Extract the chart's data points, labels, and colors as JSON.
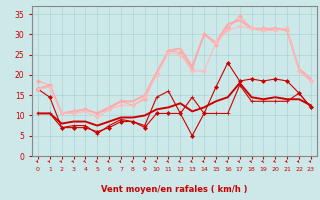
{
  "x": [
    0,
    1,
    2,
    3,
    4,
    5,
    6,
    7,
    8,
    9,
    10,
    11,
    12,
    13,
    14,
    15,
    16,
    17,
    18,
    19,
    20,
    21,
    22,
    23
  ],
  "lines": [
    {
      "y": [
        10.5,
        10.5,
        7.0,
        7.5,
        7.5,
        5.5,
        7.5,
        9.0,
        8.5,
        7.5,
        14.5,
        16.0,
        10.5,
        14.5,
        10.5,
        10.5,
        10.5,
        17.5,
        13.5,
        13.5,
        13.5,
        13.5,
        15.5,
        12.0
      ],
      "color": "#cc0000",
      "lw": 0.8,
      "marker": "+",
      "ms": 3.0,
      "zorder": 4
    },
    {
      "y": [
        16.5,
        14.5,
        7.0,
        7.0,
        7.0,
        6.0,
        7.0,
        8.5,
        8.5,
        7.0,
        10.5,
        10.5,
        10.5,
        5.0,
        10.5,
        17.0,
        23.0,
        18.5,
        19.0,
        18.5,
        19.0,
        18.5,
        15.5,
        12.0
      ],
      "color": "#cc0000",
      "lw": 0.8,
      "marker": "D",
      "ms": 2.0,
      "zorder": 4
    },
    {
      "y": [
        10.5,
        10.5,
        8.0,
        8.5,
        8.5,
        7.5,
        8.5,
        9.5,
        9.5,
        10.0,
        11.5,
        12.0,
        13.0,
        11.0,
        12.0,
        13.5,
        14.5,
        18.0,
        14.5,
        14.0,
        14.5,
        14.0,
        14.0,
        12.5
      ],
      "color": "#cc0000",
      "lw": 1.4,
      "marker": null,
      "ms": 0,
      "zorder": 3
    },
    {
      "y": [
        18.5,
        17.5,
        10.5,
        11.0,
        11.5,
        10.5,
        11.5,
        13.5,
        12.5,
        14.0,
        20.5,
        26.0,
        25.5,
        21.5,
        30.0,
        27.5,
        31.5,
        34.5,
        31.5,
        31.5,
        31.5,
        31.0,
        21.0,
        18.5
      ],
      "color": "#ffaaaa",
      "lw": 0.8,
      "marker": "D",
      "ms": 2.0,
      "zorder": 4
    },
    {
      "y": [
        16.5,
        17.5,
        10.5,
        11.0,
        11.5,
        10.5,
        12.0,
        13.5,
        13.5,
        15.0,
        20.5,
        26.0,
        26.5,
        22.0,
        30.0,
        28.0,
        32.5,
        33.5,
        31.5,
        31.0,
        31.5,
        31.0,
        21.5,
        19.0
      ],
      "color": "#ffaaaa",
      "lw": 1.4,
      "marker": null,
      "ms": 0,
      "zorder": 3
    },
    {
      "y": [
        16.5,
        17.0,
        10.5,
        10.5,
        11.0,
        9.5,
        11.5,
        12.5,
        12.5,
        14.5,
        20.0,
        25.5,
        25.0,
        21.0,
        21.0,
        28.0,
        31.0,
        32.0,
        31.5,
        31.0,
        31.0,
        31.5,
        21.0,
        18.5
      ],
      "color": "#ffbbbb",
      "lw": 0.8,
      "marker": "D",
      "ms": 2.0,
      "zorder": 4
    }
  ],
  "xlabel": "Vent moyen/en rafales ( km/h )",
  "xlim": [
    -0.5,
    23.5
  ],
  "ylim": [
    0,
    37
  ],
  "yticks": [
    0,
    5,
    10,
    15,
    20,
    25,
    30,
    35
  ],
  "xticks": [
    0,
    1,
    2,
    3,
    4,
    5,
    6,
    7,
    8,
    9,
    10,
    11,
    12,
    13,
    14,
    15,
    16,
    17,
    18,
    19,
    20,
    21,
    22,
    23
  ],
  "bg_color": "#cce8e8",
  "grid_color": "#aad4d4",
  "tick_color": "#cc0000",
  "label_color": "#cc0000",
  "arrow_color": "#cc0000",
  "spine_color": "#888888"
}
